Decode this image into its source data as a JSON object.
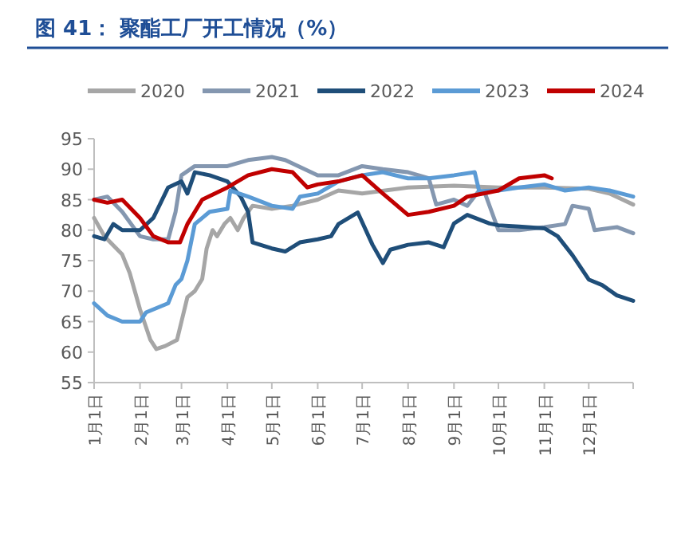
{
  "chart_data": {
    "type": "line",
    "title": "图 41：  聚酯工厂开工情况（%）",
    "legend": "top",
    "grid": false,
    "xlim": [
      "--01-01",
      "--12-31"
    ],
    "xticks": [
      {
        "value": "--01-01",
        "label": "1月1日"
      },
      {
        "value": "--02-01",
        "label": "2月1日"
      },
      {
        "value": "--03-01",
        "label": "3月1日"
      },
      {
        "value": "--04-01",
        "label": "4月1日"
      },
      {
        "value": "--05-01",
        "label": "5月1日"
      },
      {
        "value": "--06-01",
        "label": "6月1日"
      },
      {
        "value": "--07-01",
        "label": "7月1日"
      },
      {
        "value": "--08-01",
        "label": "8月1日"
      },
      {
        "value": "--09-01",
        "label": "9月1日"
      },
      {
        "value": "--10-01",
        "label": "10月1日"
      },
      {
        "value": "--11-01",
        "label": "11月1日"
      },
      {
        "value": "--12-01",
        "label": "12月1日"
      }
    ],
    "ylim": [
      55,
      95
    ],
    "yticks": [
      55,
      60,
      65,
      70,
      75,
      80,
      85,
      90,
      95
    ],
    "series": [
      {
        "name": "2020",
        "color": "#a6a6a6",
        "x": [
          "--01-01",
          "--01-08",
          "--01-20",
          "--01-25",
          "--02-01",
          "--02-08",
          "--02-12",
          "--02-18",
          "--02-26",
          "--03-01",
          "--03-05",
          "--03-10",
          "--03-15",
          "--03-18",
          "--03-22",
          "--03-25",
          "--03-30",
          "--04-03",
          "--04-08",
          "--04-12",
          "--04-18",
          "--05-01",
          "--05-15",
          "--06-01",
          "--06-15",
          "--07-01",
          "--08-01",
          "--09-01",
          "--10-01",
          "--11-01",
          "--12-01",
          "--12-15",
          "--12-31"
        ],
        "values": [
          82,
          79,
          76,
          73,
          67,
          62,
          60.5,
          61,
          62,
          65,
          69,
          70,
          72,
          77,
          80,
          79,
          81,
          82,
          80,
          82,
          84,
          83.5,
          84,
          85,
          86.5,
          86,
          87,
          87.3,
          87,
          87,
          86.8,
          86,
          84.2
        ]
      },
      {
        "name": "2021",
        "color": "#8497b0",
        "x": [
          "--01-01",
          "--01-10",
          "--01-20",
          "--02-01",
          "--02-10",
          "--02-20",
          "--02-25",
          "--03-01",
          "--03-10",
          "--04-01",
          "--04-15",
          "--05-01",
          "--05-10",
          "--06-01",
          "--06-15",
          "--07-01",
          "--07-15",
          "--08-01",
          "--08-15",
          "--08-20",
          "--09-01",
          "--09-10",
          "--09-18",
          "--09-22",
          "--10-01",
          "--10-15",
          "--11-01",
          "--11-15",
          "--11-20",
          "--12-01",
          "--12-05",
          "--12-20",
          "--12-31"
        ],
        "values": [
          85,
          85.5,
          83,
          79,
          78.5,
          78.5,
          83,
          89,
          90.5,
          90.5,
          91.5,
          92,
          91.5,
          89,
          89,
          90.5,
          90,
          89.5,
          88.5,
          84.2,
          85,
          84,
          86.5,
          86,
          80,
          80,
          80.5,
          81,
          84,
          83.5,
          80,
          80.5,
          79.5
        ]
      },
      {
        "name": "2022",
        "color": "#1f4e79",
        "x": [
          "--01-01",
          "--01-08",
          "--01-14",
          "--01-20",
          "--02-01",
          "--02-10",
          "--02-20",
          "--03-01",
          "--03-05",
          "--03-10",
          "--03-20",
          "--04-01",
          "--04-10",
          "--04-15",
          "--04-18",
          "--05-01",
          "--05-10",
          "--05-20",
          "--06-01",
          "--06-10",
          "--06-15",
          "--06-28",
          "--07-08",
          "--07-15",
          "--07-20",
          "--08-01",
          "--08-15",
          "--08-25",
          "--09-01",
          "--09-10",
          "--09-25",
          "--10-01",
          "--10-15",
          "--11-01",
          "--11-10",
          "--11-20",
          "--12-01",
          "--12-10",
          "--12-20",
          "--12-31"
        ],
        "values": [
          79,
          78.5,
          81,
          80,
          80,
          82,
          87,
          88,
          86,
          89.5,
          89,
          88,
          85.5,
          83,
          78,
          77,
          76.5,
          78,
          78.5,
          79,
          81,
          82.9,
          77.6,
          74.6,
          76.8,
          77.6,
          78,
          77.2,
          81.1,
          82.5,
          81.1,
          80.8,
          80.6,
          80.3,
          79,
          75.9,
          71.9,
          71,
          69.3,
          68.4
        ]
      },
      {
        "name": "2023",
        "color": "#5b9bd5",
        "x": [
          "--01-01",
          "--01-10",
          "--01-20",
          "--02-01",
          "--02-05",
          "--02-20",
          "--02-25",
          "--03-01",
          "--03-05",
          "--03-10",
          "--03-20",
          "--04-01",
          "--04-03",
          "--04-15",
          "--05-01",
          "--05-15",
          "--05-20",
          "--06-01",
          "--06-15",
          "--07-01",
          "--07-15",
          "--08-01",
          "--08-15",
          "--09-01",
          "--09-15",
          "--09-18",
          "--10-01",
          "--10-15",
          "--11-01",
          "--11-15",
          "--12-01",
          "--12-15",
          "--12-31"
        ],
        "values": [
          68,
          66,
          65,
          65,
          66.5,
          68,
          71,
          72,
          75,
          81,
          83,
          83.5,
          86.5,
          85.5,
          84,
          83.5,
          85.5,
          86,
          88,
          89,
          89.5,
          88.5,
          88.5,
          89,
          89.5,
          86.4,
          86.5,
          87,
          87.5,
          86.5,
          87,
          86.5,
          85.5
        ]
      },
      {
        "name": "2024",
        "color": "#c00000",
        "x": [
          "--01-01",
          "--01-10",
          "--01-20",
          "--02-01",
          "--02-10",
          "--02-20",
          "--02-28",
          "--03-05",
          "--03-15",
          "--04-01",
          "--04-15",
          "--05-01",
          "--05-15",
          "--05-25",
          "--06-01",
          "--06-15",
          "--07-01",
          "--07-08",
          "--07-15",
          "--08-01",
          "--08-15",
          "--09-01",
          "--09-10",
          "--10-01",
          "--10-15",
          "--11-01",
          "--11-06"
        ],
        "values": [
          85,
          84.5,
          85,
          82,
          79,
          78,
          78,
          81,
          85,
          87,
          89,
          90,
          89.5,
          87,
          87.5,
          88,
          89,
          87.5,
          86,
          82.5,
          83,
          84,
          85.5,
          86.5,
          88.5,
          89,
          88.5
        ]
      }
    ]
  }
}
